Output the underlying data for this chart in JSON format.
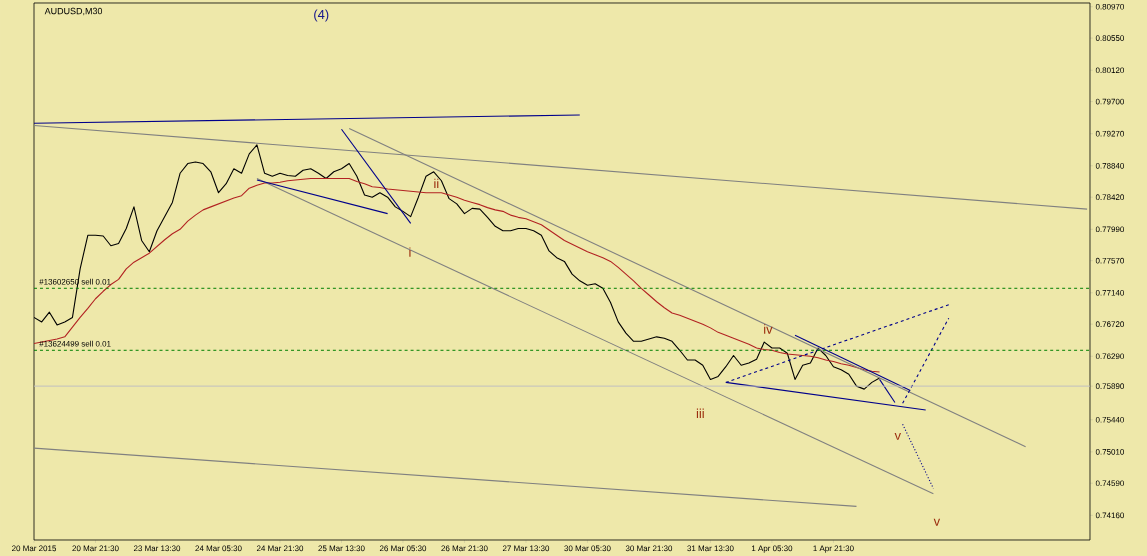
{
  "chart_data": {
    "type": "line",
    "title": "AUDUSD,M30",
    "categories": [
      "20 Mar 2015",
      null,
      null,
      null,
      null,
      null,
      null,
      null,
      "20 Mar 21:30",
      null,
      null,
      null,
      null,
      null,
      null,
      null,
      "23 Mar 13:30",
      null,
      null,
      null,
      null,
      null,
      null,
      null,
      "24 Mar 05:30",
      null,
      null,
      null,
      null,
      null,
      null,
      null,
      "24 Mar 21:30",
      null,
      null,
      null,
      null,
      null,
      null,
      null,
      "25 Mar 13:30",
      null,
      null,
      null,
      null,
      null,
      null,
      null,
      "26 Mar 05:30",
      null,
      null,
      null,
      null,
      null,
      null,
      null,
      "26 Mar 21:30",
      null,
      null,
      null,
      null,
      null,
      null,
      null,
      "27 Mar 13:30",
      null,
      null,
      null,
      null,
      null,
      null,
      null,
      "30 Mar 05:30",
      null,
      null,
      null,
      null,
      null,
      null,
      null,
      "30 Mar 21:30",
      null,
      null,
      null,
      null,
      null,
      null,
      null,
      "31 Mar 13:30",
      null,
      null,
      null,
      null,
      null,
      null,
      null,
      "1 Apr 05:30",
      null,
      null,
      null,
      null,
      null,
      null,
      null,
      "1 Apr 21:30",
      null,
      null,
      null,
      null,
      null,
      null,
      null,
      null,
      null,
      null,
      null,
      null,
      null,
      null,
      null,
      null,
      null,
      null,
      null,
      null,
      null,
      null,
      null,
      null,
      null,
      null,
      null,
      null,
      null,
      null,
      null,
      null,
      null
    ],
    "ylim": [
      0.7383,
      0.8102
    ],
    "yticks": [
      {
        "value": 0.8097,
        "label": "0.80970"
      },
      {
        "value": 0.8055,
        "label": "0.80550"
      },
      {
        "value": 0.8012,
        "label": "0.80120"
      },
      {
        "value": 0.797,
        "label": "0.79700"
      },
      {
        "value": 0.7927,
        "label": "0.79270"
      },
      {
        "value": 0.7884,
        "label": "0.78840"
      },
      {
        "value": 0.7842,
        "label": "0.78420"
      },
      {
        "value": 0.7799,
        "label": "0.77990"
      },
      {
        "value": 0.7757,
        "label": "0.77570"
      },
      {
        "value": 0.7714,
        "label": "0.77140"
      },
      {
        "value": 0.7672,
        "label": "0.76720"
      },
      {
        "value": 0.7629,
        "label": "0.76290"
      },
      {
        "value": 0.7589,
        "label": "0.75890"
      },
      {
        "value": 0.7544,
        "label": "0.75440"
      },
      {
        "value": 0.7501,
        "label": "0.75010"
      },
      {
        "value": 0.7459,
        "label": "0.74590"
      },
      {
        "value": 0.7416,
        "label": "0.74160"
      }
    ],
    "series": [
      {
        "color": "#000000",
        "line_style": "solid",
        "values": [
          0.7681,
          0.7675,
          0.7688,
          0.7671,
          0.7675,
          0.7681,
          0.7746,
          0.7791,
          0.7791,
          0.779,
          0.7777,
          0.778,
          0.78,
          0.7829,
          0.7784,
          0.7769,
          0.7797,
          0.7816,
          0.7835,
          0.7874,
          0.7887,
          0.7889,
          0.7887,
          0.7876,
          0.7848,
          0.786,
          0.788,
          0.7874,
          0.79,
          0.7912,
          0.7874,
          0.787,
          0.7874,
          0.7871,
          0.787,
          0.7878,
          0.788,
          0.7874,
          0.7867,
          0.7876,
          0.788,
          0.7887,
          0.787,
          0.7845,
          0.7842,
          0.7848,
          0.7842,
          0.7829,
          0.7823,
          0.7816,
          0.7842,
          0.787,
          0.7876,
          0.7864,
          0.784,
          0.7833,
          0.782,
          0.7827,
          0.7826,
          0.7815,
          0.7803,
          0.7797,
          0.7797,
          0.78,
          0.78,
          0.7797,
          0.7791,
          0.777,
          0.7761,
          0.7756,
          0.7739,
          0.773,
          0.7724,
          0.7726,
          0.772,
          0.7701,
          0.7675,
          0.766,
          0.7649,
          0.7649,
          0.7652,
          0.7655,
          0.7653,
          0.7649,
          0.7637,
          0.7624,
          0.7624,
          0.7617,
          0.7598,
          0.7602,
          0.7615,
          0.763,
          0.7617,
          0.762,
          0.7625,
          0.7648,
          0.764,
          0.764,
          0.7633,
          0.7598,
          0.7617,
          0.762,
          0.764,
          0.763,
          0.7615,
          0.7611,
          0.7605,
          0.7589,
          0.7585,
          0.7594,
          0.76,
          null,
          null,
          null,
          null,
          null,
          null,
          null,
          null,
          null,
          null,
          null,
          null,
          null,
          null,
          null,
          null,
          null,
          null,
          null,
          null,
          null,
          null,
          null,
          null,
          null,
          null,
          null
        ]
      },
      {
        "color": "#b22222",
        "line_style": "solid",
        "values": [
          0.7646,
          0.7648,
          0.765,
          0.7652,
          0.7655,
          0.7668,
          0.7681,
          0.7693,
          0.7706,
          0.7716,
          0.7725,
          0.7732,
          0.7746,
          0.7755,
          0.7761,
          0.7767,
          0.7776,
          0.7785,
          0.7793,
          0.7799,
          0.781,
          0.7818,
          0.7825,
          0.7829,
          0.7833,
          0.7837,
          0.7841,
          0.7844,
          0.7854,
          0.7858,
          0.7861,
          0.7861,
          0.7862,
          0.7864,
          0.7865,
          0.7866,
          0.7867,
          0.7867,
          0.7867,
          0.7867,
          0.7867,
          0.7867,
          0.7863,
          0.786,
          0.7856,
          0.7855,
          0.7853,
          0.7852,
          0.7851,
          0.785,
          0.7849,
          0.7848,
          0.7848,
          0.7848,
          0.7845,
          0.7842,
          0.7838,
          0.7835,
          0.7832,
          0.7828,
          0.7825,
          0.7823,
          0.7818,
          0.7815,
          0.7813,
          0.7809,
          0.7805,
          0.7798,
          0.7791,
          0.7784,
          0.7779,
          0.7774,
          0.7769,
          0.7765,
          0.7761,
          0.7756,
          0.7748,
          0.7739,
          0.773,
          0.772,
          0.7711,
          0.7702,
          0.7694,
          0.7687,
          0.7684,
          0.768,
          0.7676,
          0.7672,
          0.7667,
          0.7661,
          0.7657,
          0.7653,
          0.7649,
          0.7645,
          0.764,
          0.7638,
          0.7637,
          0.7634,
          0.7632,
          0.7631,
          0.763,
          0.7629,
          0.7627,
          0.7624,
          0.7622,
          0.7619,
          0.7617,
          0.7614,
          0.7611,
          0.7609,
          0.7608,
          null,
          null,
          null,
          null,
          null,
          null,
          null,
          null,
          null,
          null,
          null,
          null,
          null,
          null,
          null,
          null,
          null,
          null,
          null,
          null,
          null,
          null,
          null,
          null,
          null,
          null,
          null
        ]
      },
      {
        "color": "#00008b",
        "line_style": "solid",
        "values": [
          0.7941,
          null,
          null,
          null,
          null,
          null,
          null,
          null,
          null,
          null,
          null,
          null,
          null,
          null,
          null,
          null,
          null,
          null,
          null,
          null,
          null,
          null,
          null,
          null,
          null,
          null,
          null,
          null,
          null,
          null,
          null,
          null,
          null,
          null,
          null,
          null,
          null,
          null,
          null,
          null,
          null,
          null,
          null,
          null,
          null,
          null,
          null,
          null,
          null,
          null,
          null,
          null,
          null,
          null,
          null,
          null,
          null,
          null,
          null,
          null,
          null,
          null,
          null,
          null,
          null,
          null,
          null,
          null,
          null,
          null,
          null,
          0.7952,
          null,
          null,
          null,
          null,
          null,
          null,
          null,
          null,
          null,
          null,
          null,
          null,
          null,
          null,
          null,
          null,
          null,
          null,
          null,
          null,
          null,
          null,
          null,
          null,
          null,
          null,
          null,
          null,
          null,
          null,
          null,
          null,
          null,
          null,
          null,
          null,
          null,
          null,
          null,
          null,
          null,
          null,
          null,
          null,
          null,
          null,
          null,
          null,
          null,
          null,
          null,
          null,
          null,
          null,
          null,
          null,
          null,
          null,
          null,
          null,
          null,
          null,
          null,
          null,
          null,
          null
        ]
      },
      {
        "color": "#808080",
        "line_style": "solid",
        "values": [
          0.7938,
          null,
          null,
          null,
          null,
          null,
          null,
          null,
          null,
          null,
          null,
          null,
          null,
          null,
          null,
          null,
          null,
          null,
          null,
          null,
          null,
          null,
          null,
          null,
          null,
          null,
          null,
          null,
          null,
          null,
          null,
          null,
          null,
          null,
          null,
          null,
          null,
          null,
          null,
          null,
          null,
          null,
          null,
          null,
          null,
          null,
          null,
          null,
          null,
          null,
          null,
          null,
          null,
          null,
          null,
          null,
          null,
          null,
          null,
          null,
          null,
          null,
          null,
          null,
          null,
          null,
          null,
          null,
          null,
          null,
          null,
          null,
          null,
          null,
          null,
          null,
          null,
          null,
          null,
          null,
          null,
          null,
          null,
          null,
          null,
          null,
          null,
          null,
          null,
          null,
          null,
          null,
          null,
          null,
          null,
          null,
          null,
          null,
          null,
          null,
          null,
          null,
          null,
          null,
          null,
          null,
          null,
          null,
          null,
          null,
          null,
          null,
          null,
          null,
          null,
          null,
          null,
          null,
          null,
          null,
          null,
          null,
          null,
          null,
          null,
          null,
          null,
          null,
          null,
          null,
          null,
          null,
          null,
          null,
          null,
          null,
          null,
          0.7826
        ]
      },
      {
        "color": "#808080",
        "line_style": "solid",
        "values": [
          0.7506,
          null,
          null,
          null,
          null,
          null,
          null,
          null,
          null,
          null,
          null,
          null,
          null,
          null,
          null,
          null,
          null,
          null,
          null,
          null,
          null,
          null,
          null,
          null,
          null,
          null,
          null,
          null,
          null,
          null,
          null,
          null,
          null,
          null,
          null,
          null,
          null,
          null,
          null,
          null,
          null,
          null,
          null,
          null,
          null,
          null,
          null,
          null,
          null,
          null,
          null,
          null,
          null,
          null,
          null,
          null,
          null,
          null,
          null,
          null,
          null,
          null,
          null,
          null,
          null,
          null,
          null,
          null,
          null,
          null,
          null,
          null,
          null,
          null,
          null,
          null,
          null,
          null,
          null,
          null,
          null,
          null,
          null,
          null,
          null,
          null,
          null,
          null,
          null,
          null,
          null,
          null,
          null,
          null,
          null,
          null,
          null,
          null,
          null,
          null,
          null,
          null,
          null,
          null,
          null,
          null,
          null,
          0.7428,
          null,
          null,
          null,
          null,
          null,
          null,
          null,
          null,
          null,
          null,
          null,
          null,
          null,
          null,
          null,
          null,
          null,
          null,
          null,
          null,
          null,
          null,
          null,
          null,
          null,
          null,
          null,
          null,
          null,
          null
        ]
      },
      {
        "color": "#808080",
        "line_style": "solid",
        "values": [
          null,
          null,
          null,
          null,
          null,
          null,
          null,
          null,
          null,
          null,
          null,
          null,
          null,
          null,
          null,
          null,
          null,
          null,
          null,
          null,
          null,
          null,
          null,
          null,
          null,
          null,
          null,
          null,
          null,
          null,
          null,
          null,
          null,
          null,
          null,
          null,
          null,
          null,
          null,
          null,
          null,
          0.7934,
          null,
          null,
          null,
          null,
          null,
          null,
          null,
          null,
          null,
          null,
          null,
          null,
          null,
          null,
          null,
          null,
          null,
          null,
          null,
          null,
          null,
          null,
          null,
          null,
          null,
          null,
          null,
          null,
          null,
          null,
          null,
          null,
          null,
          null,
          null,
          null,
          null,
          null,
          null,
          null,
          null,
          null,
          null,
          null,
          null,
          null,
          null,
          null,
          null,
          null,
          null,
          null,
          null,
          null,
          null,
          null,
          null,
          null,
          null,
          null,
          null,
          null,
          null,
          null,
          null,
          null,
          null,
          null,
          null,
          null,
          null,
          null,
          null,
          null,
          null,
          null,
          null,
          null,
          null,
          null,
          null,
          null,
          null,
          null,
          null,
          null,
          null,
          0.7508,
          null,
          null,
          null,
          null,
          null,
          null,
          null,
          null
        ]
      },
      {
        "color": "#808080",
        "line_style": "solid",
        "values": [
          null,
          null,
          null,
          null,
          null,
          null,
          null,
          null,
          null,
          null,
          null,
          null,
          null,
          null,
          null,
          null,
          null,
          null,
          null,
          null,
          null,
          null,
          null,
          null,
          null,
          null,
          null,
          null,
          null,
          0.7867,
          null,
          null,
          null,
          null,
          null,
          null,
          null,
          null,
          null,
          null,
          null,
          null,
          null,
          null,
          null,
          null,
          null,
          null,
          null,
          null,
          null,
          null,
          null,
          null,
          null,
          null,
          null,
          null,
          null,
          null,
          null,
          null,
          null,
          null,
          null,
          null,
          null,
          null,
          null,
          null,
          null,
          null,
          null,
          null,
          null,
          null,
          null,
          null,
          null,
          null,
          null,
          null,
          null,
          null,
          null,
          null,
          null,
          null,
          null,
          null,
          null,
          null,
          null,
          null,
          null,
          null,
          null,
          null,
          null,
          null,
          null,
          null,
          null,
          null,
          null,
          null,
          null,
          null,
          null,
          null,
          null,
          null,
          null,
          null,
          null,
          null,
          null,
          0.7445,
          null,
          null,
          null,
          null,
          null,
          null,
          null,
          null,
          null,
          null,
          null,
          null,
          null,
          null,
          null,
          null,
          null,
          null,
          null,
          null
        ]
      },
      {
        "color": "#00008b",
        "line_style": "solid",
        "values": [
          null,
          null,
          null,
          null,
          null,
          null,
          null,
          null,
          null,
          null,
          null,
          null,
          null,
          null,
          null,
          null,
          null,
          null,
          null,
          null,
          null,
          null,
          null,
          null,
          null,
          null,
          null,
          null,
          null,
          0.7865,
          null,
          null,
          null,
          null,
          null,
          null,
          null,
          null,
          null,
          null,
          null,
          null,
          null,
          null,
          null,
          null,
          0.782,
          null,
          null,
          null,
          null,
          null,
          null,
          null,
          null,
          null,
          null,
          null,
          null,
          null,
          null,
          null,
          null,
          null,
          null,
          null,
          null,
          null,
          null,
          null,
          null,
          null,
          null,
          null,
          null,
          null,
          null,
          null,
          null,
          null,
          null,
          null,
          null,
          null,
          null,
          null,
          null,
          null,
          null,
          null,
          null,
          null,
          null,
          null,
          null,
          null,
          null,
          null,
          null,
          null,
          null,
          null,
          null,
          null,
          null,
          null,
          null,
          null,
          null,
          null,
          null,
          null,
          null,
          null,
          null,
          null,
          null,
          null,
          null,
          null,
          null,
          null,
          null,
          null,
          null,
          null,
          null,
          null,
          null,
          null,
          null,
          null,
          null,
          null,
          null,
          null,
          null,
          null
        ]
      },
      {
        "color": "#00008b",
        "line_style": "solid",
        "values": [
          null,
          null,
          null,
          null,
          null,
          null,
          null,
          null,
          null,
          null,
          null,
          null,
          null,
          null,
          null,
          null,
          null,
          null,
          null,
          null,
          null,
          null,
          null,
          null,
          null,
          null,
          null,
          null,
          null,
          null,
          null,
          null,
          null,
          null,
          null,
          null,
          null,
          null,
          null,
          null,
          0.7933,
          null,
          null,
          null,
          null,
          null,
          null,
          null,
          null,
          0.7807,
          null,
          null,
          null,
          null,
          null,
          null,
          null,
          null,
          null,
          null,
          null,
          null,
          null,
          null,
          null,
          null,
          null,
          null,
          null,
          null,
          null,
          null,
          null,
          null,
          null,
          null,
          null,
          null,
          null,
          null,
          null,
          null,
          null,
          null,
          null,
          null,
          null,
          null,
          null,
          null,
          null,
          null,
          null,
          null,
          null,
          null,
          null,
          null,
          null,
          null,
          null,
          null,
          null,
          null,
          null,
          null,
          null,
          null,
          null,
          null,
          null,
          null,
          null,
          null,
          null,
          null,
          null,
          null,
          null,
          null,
          null,
          null,
          null,
          null,
          null,
          null,
          null,
          null,
          null,
          null,
          null,
          null,
          null,
          null,
          null,
          null,
          null,
          null
        ]
      },
      {
        "color": "#00008b",
        "line_style": "solid",
        "values": [
          null,
          null,
          null,
          null,
          null,
          null,
          null,
          null,
          null,
          null,
          null,
          null,
          null,
          null,
          null,
          null,
          null,
          null,
          null,
          null,
          null,
          null,
          null,
          null,
          null,
          null,
          null,
          null,
          null,
          null,
          null,
          null,
          null,
          null,
          null,
          null,
          null,
          null,
          null,
          null,
          null,
          null,
          null,
          null,
          null,
          null,
          null,
          null,
          null,
          null,
          null,
          null,
          null,
          null,
          null,
          null,
          null,
          null,
          null,
          null,
          null,
          null,
          null,
          null,
          null,
          null,
          null,
          null,
          null,
          null,
          null,
          null,
          null,
          null,
          null,
          null,
          null,
          null,
          null,
          null,
          null,
          null,
          null,
          null,
          null,
          null,
          null,
          null,
          null,
          null,
          0.7594,
          null,
          null,
          null,
          null,
          null,
          null,
          null,
          null,
          null,
          null,
          null,
          null,
          null,
          null,
          null,
          null,
          null,
          null,
          null,
          null,
          null,
          null,
          null,
          null,
          null,
          0.7557,
          null,
          null,
          null,
          null,
          null,
          null,
          null,
          null,
          null,
          null,
          null,
          null,
          null,
          null,
          null,
          null,
          null,
          null,
          null,
          null,
          null
        ]
      },
      {
        "color": "#00008b",
        "line_style": "solid",
        "values": [
          null,
          null,
          null,
          null,
          null,
          null,
          null,
          null,
          null,
          null,
          null,
          null,
          null,
          null,
          null,
          null,
          null,
          null,
          null,
          null,
          null,
          null,
          null,
          null,
          null,
          null,
          null,
          null,
          null,
          null,
          null,
          null,
          null,
          null,
          null,
          null,
          null,
          null,
          null,
          null,
          null,
          null,
          null,
          null,
          null,
          null,
          null,
          null,
          null,
          null,
          null,
          null,
          null,
          null,
          null,
          null,
          null,
          null,
          null,
          null,
          null,
          null,
          null,
          null,
          null,
          null,
          null,
          null,
          null,
          null,
          null,
          null,
          null,
          null,
          null,
          null,
          null,
          null,
          null,
          null,
          null,
          null,
          null,
          null,
          null,
          null,
          null,
          null,
          null,
          null,
          null,
          null,
          null,
          null,
          null,
          null,
          null,
          null,
          null,
          0.7657,
          null,
          null,
          null,
          null,
          null,
          null,
          null,
          null,
          null,
          null,
          null,
          null,
          null,
          null,
          0.7583,
          null,
          null,
          null,
          null,
          null,
          null,
          null,
          null,
          null,
          null,
          null,
          null,
          null,
          null,
          null,
          null,
          null,
          null,
          null,
          null,
          null,
          null,
          null
        ]
      },
      {
        "color": "#00008b",
        "line_style": "solid",
        "values": [
          null,
          null,
          null,
          null,
          null,
          null,
          null,
          null,
          null,
          null,
          null,
          null,
          null,
          null,
          null,
          null,
          null,
          null,
          null,
          null,
          null,
          null,
          null,
          null,
          null,
          null,
          null,
          null,
          null,
          null,
          null,
          null,
          null,
          null,
          null,
          null,
          null,
          null,
          null,
          null,
          null,
          null,
          null,
          null,
          null,
          null,
          null,
          null,
          null,
          null,
          null,
          null,
          null,
          null,
          null,
          null,
          null,
          null,
          null,
          null,
          null,
          null,
          null,
          null,
          null,
          null,
          null,
          null,
          null,
          null,
          null,
          null,
          null,
          null,
          null,
          null,
          null,
          null,
          null,
          null,
          null,
          null,
          null,
          null,
          null,
          null,
          null,
          null,
          null,
          null,
          null,
          null,
          null,
          null,
          null,
          null,
          null,
          null,
          null,
          null,
          null,
          null,
          null,
          null,
          null,
          null,
          null,
          null,
          null,
          null,
          0.7598,
          null,
          0.7567,
          null,
          null,
          null,
          null,
          null,
          null,
          null,
          null,
          null,
          null,
          null,
          null,
          null,
          null,
          null,
          null,
          null,
          null,
          null,
          null,
          null,
          null,
          null,
          null,
          null
        ]
      },
      {
        "color": "#00008b",
        "line_style": "dashed",
        "values": [
          null,
          null,
          null,
          null,
          null,
          null,
          null,
          null,
          null,
          null,
          null,
          null,
          null,
          null,
          null,
          null,
          null,
          null,
          null,
          null,
          null,
          null,
          null,
          null,
          null,
          null,
          null,
          null,
          null,
          null,
          null,
          null,
          null,
          null,
          null,
          null,
          null,
          null,
          null,
          null,
          null,
          null,
          null,
          null,
          null,
          null,
          null,
          null,
          null,
          null,
          null,
          null,
          null,
          null,
          null,
          null,
          null,
          null,
          null,
          null,
          null,
          null,
          null,
          null,
          null,
          null,
          null,
          null,
          null,
          null,
          null,
          null,
          null,
          null,
          null,
          null,
          null,
          null,
          null,
          null,
          null,
          null,
          null,
          null,
          null,
          null,
          null,
          null,
          null,
          null,
          0.7594,
          null,
          null,
          null,
          null,
          null,
          null,
          null,
          null,
          null,
          null,
          null,
          null,
          null,
          null,
          null,
          null,
          null,
          null,
          null,
          null,
          null,
          null,
          null,
          null,
          null,
          null,
          null,
          null,
          0.7698,
          null,
          null,
          null,
          null,
          null,
          null,
          null,
          null,
          null,
          null,
          null,
          null,
          null,
          null,
          null,
          null,
          null,
          null
        ]
      },
      {
        "color": "#00008b",
        "line_style": "dashed",
        "values": [
          null,
          null,
          null,
          null,
          null,
          null,
          null,
          null,
          null,
          null,
          null,
          null,
          null,
          null,
          null,
          null,
          null,
          null,
          null,
          null,
          null,
          null,
          null,
          null,
          null,
          null,
          null,
          null,
          null,
          null,
          null,
          null,
          null,
          null,
          null,
          null,
          null,
          null,
          null,
          null,
          null,
          null,
          null,
          null,
          null,
          null,
          null,
          null,
          null,
          null,
          null,
          null,
          null,
          null,
          null,
          null,
          null,
          null,
          null,
          null,
          null,
          null,
          null,
          null,
          null,
          null,
          null,
          null,
          null,
          null,
          null,
          null,
          null,
          null,
          null,
          null,
          null,
          null,
          null,
          null,
          null,
          null,
          null,
          null,
          null,
          null,
          null,
          null,
          null,
          null,
          null,
          null,
          null,
          null,
          null,
          null,
          null,
          null,
          null,
          null,
          null,
          null,
          null,
          null,
          null,
          null,
          null,
          null,
          null,
          null,
          null,
          null,
          null,
          0.7566,
          null,
          null,
          null,
          null,
          null,
          0.768,
          null,
          null,
          null,
          null,
          null,
          null,
          null,
          null,
          null,
          null,
          null,
          null,
          null,
          null,
          null,
          null,
          null,
          null
        ]
      },
      {
        "color": "#00008b",
        "line_style": "dotted",
        "values": [
          null,
          null,
          null,
          null,
          null,
          null,
          null,
          null,
          null,
          null,
          null,
          null,
          null,
          null,
          null,
          null,
          null,
          null,
          null,
          null,
          null,
          null,
          null,
          null,
          null,
          null,
          null,
          null,
          null,
          null,
          null,
          null,
          null,
          null,
          null,
          null,
          null,
          null,
          null,
          null,
          null,
          null,
          null,
          null,
          null,
          null,
          null,
          null,
          null,
          null,
          null,
          null,
          null,
          null,
          null,
          null,
          null,
          null,
          null,
          null,
          null,
          null,
          null,
          null,
          null,
          null,
          null,
          null,
          null,
          null,
          null,
          null,
          null,
          null,
          null,
          null,
          null,
          null,
          null,
          null,
          null,
          null,
          null,
          null,
          null,
          null,
          null,
          null,
          null,
          null,
          null,
          null,
          null,
          null,
          null,
          null,
          null,
          null,
          null,
          null,
          null,
          null,
          null,
          null,
          null,
          null,
          null,
          null,
          null,
          null,
          null,
          null,
          null,
          0.7538,
          null,
          null,
          null,
          0.7452,
          null,
          null,
          null,
          null,
          null,
          null,
          null,
          null,
          null,
          null,
          null,
          null,
          null,
          null,
          null,
          null,
          null,
          null,
          null,
          null
        ]
      }
    ],
    "ref_lines": [
      {
        "axis": "y",
        "value": 0.772,
        "label": "#13602650 sell 0.01",
        "color": "#008000",
        "line_style": "dashed"
      },
      {
        "axis": "y",
        "value": 0.7637,
        "label": "#13624499 sell 0.01",
        "color": "#008000",
        "line_style": "dashed"
      },
      {
        "axis": "y",
        "value": 0.7589,
        "color": "#c0c0c0",
        "line_style": "solid"
      }
    ],
    "annotations": [
      "(4)",
      "i",
      "ii",
      "iii",
      "iv",
      "v",
      "v"
    ]
  }
}
